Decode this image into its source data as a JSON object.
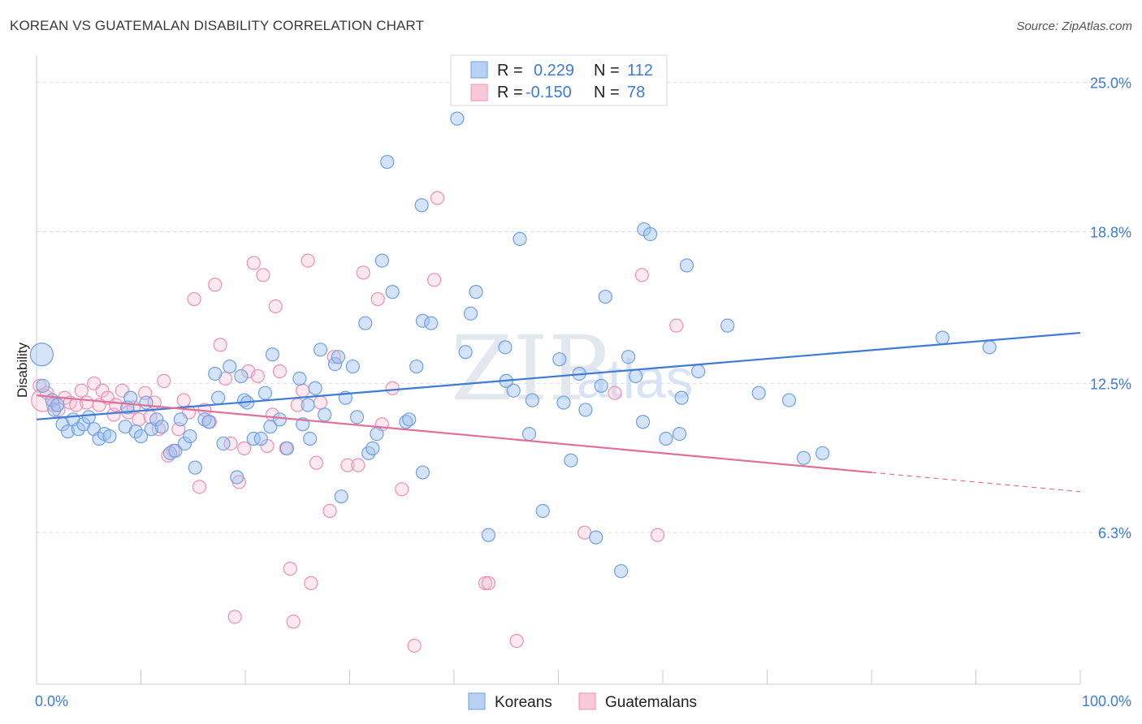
{
  "header": {
    "title": "KOREAN VS GUATEMALAN DISABILITY CORRELATION CHART",
    "source": "Source: ZipAtlas.com"
  },
  "legend": {
    "rows": [
      {
        "r_label": "R =",
        "r_value": "0.229",
        "n_label": "N =",
        "n_value": "112",
        "color": "#6fa0e4"
      },
      {
        "r_label": "R =",
        "r_value": "-0.150",
        "n_label": "N =",
        "n_value": "78",
        "color": "#ee8fb1"
      }
    ]
  },
  "watermark": {
    "zip": "ZIP",
    "atlas": "atlas"
  },
  "colors": {
    "koreans": "#3d7bd6",
    "guatemalans": "#e0709a",
    "grid": "#dcdcdc",
    "axis_text": "#3d7bd6"
  },
  "chart_data": {
    "type": "scatter",
    "title": "KOREAN VS GUATEMALAN DISABILITY CORRELATION CHART",
    "xlabel": "",
    "ylabel": "Disability",
    "xlim": [
      0,
      100
    ],
    "ylim": [
      0,
      26
    ],
    "x_tick_labels": [
      "0.0%",
      "100.0%"
    ],
    "y_ticks": [
      6.3,
      12.5,
      18.8,
      25.0
    ],
    "y_tick_labels": [
      "6.3%",
      "12.5%",
      "18.8%",
      "25.0%"
    ],
    "grid": true,
    "legend_position": "bottom",
    "series": [
      {
        "name": "Koreans",
        "color": "#6fa0e4",
        "r": 0.229,
        "n": 112,
        "trend": {
          "x": [
            0,
            100
          ],
          "y": [
            11.0,
            14.6
          ]
        },
        "points": [
          [
            0.5,
            13.7
          ],
          [
            0.6,
            12.4
          ],
          [
            1.5,
            11.8
          ],
          [
            1.7,
            11.4
          ],
          [
            2.0,
            11.6
          ],
          [
            2.5,
            10.8
          ],
          [
            3.0,
            10.5
          ],
          [
            3.5,
            11.0
          ],
          [
            4.0,
            10.6
          ],
          [
            4.5,
            10.8
          ],
          [
            5.0,
            11.1
          ],
          [
            5.5,
            10.6
          ],
          [
            6.0,
            10.2
          ],
          [
            6.5,
            10.4
          ],
          [
            7.0,
            10.3
          ],
          [
            8.5,
            10.7
          ],
          [
            8.7,
            11.5
          ],
          [
            9.0,
            11.9
          ],
          [
            9.5,
            10.5
          ],
          [
            10.0,
            10.3
          ],
          [
            10.5,
            11.7
          ],
          [
            11.0,
            10.6
          ],
          [
            11.5,
            11.0
          ],
          [
            12.0,
            10.7
          ],
          [
            12.8,
            9.6
          ],
          [
            13.3,
            9.7
          ],
          [
            13.8,
            11.0
          ],
          [
            14.2,
            10.0
          ],
          [
            14.7,
            10.3
          ],
          [
            15.2,
            9.0
          ],
          [
            16.1,
            11.0
          ],
          [
            16.5,
            10.9
          ],
          [
            17.1,
            12.9
          ],
          [
            17.4,
            11.9
          ],
          [
            17.9,
            10.0
          ],
          [
            18.5,
            13.2
          ],
          [
            19.2,
            8.6
          ],
          [
            19.6,
            12.8
          ],
          [
            19.9,
            11.8
          ],
          [
            20.2,
            11.7
          ],
          [
            20.8,
            10.2
          ],
          [
            21.5,
            10.2
          ],
          [
            21.9,
            12.1
          ],
          [
            22.4,
            10.7
          ],
          [
            22.6,
            13.7
          ],
          [
            23.3,
            11.0
          ],
          [
            24.0,
            9.8
          ],
          [
            25.2,
            12.7
          ],
          [
            25.5,
            10.8
          ],
          [
            26.0,
            11.6
          ],
          [
            26.2,
            10.2
          ],
          [
            26.7,
            12.3
          ],
          [
            27.2,
            13.9
          ],
          [
            27.6,
            11.2
          ],
          [
            28.6,
            13.3
          ],
          [
            28.9,
            13.6
          ],
          [
            29.2,
            7.8
          ],
          [
            29.6,
            11.9
          ],
          [
            30.3,
            13.2
          ],
          [
            30.7,
            11.1
          ],
          [
            31.5,
            15.0
          ],
          [
            31.8,
            9.6
          ],
          [
            32.2,
            9.8
          ],
          [
            32.6,
            10.4
          ],
          [
            33.1,
            17.6
          ],
          [
            33.6,
            21.7
          ],
          [
            34.1,
            16.3
          ],
          [
            35.4,
            10.9
          ],
          [
            35.7,
            11.0
          ],
          [
            36.4,
            13.2
          ],
          [
            36.9,
            19.9
          ],
          [
            37.0,
            15.1
          ],
          [
            37.0,
            8.8
          ],
          [
            37.8,
            15.0
          ],
          [
            40.3,
            23.5
          ],
          [
            41.1,
            13.8
          ],
          [
            41.6,
            15.4
          ],
          [
            42.1,
            16.3
          ],
          [
            43.3,
            6.2
          ],
          [
            45.0,
            12.6
          ],
          [
            45.7,
            12.2
          ],
          [
            46.3,
            18.5
          ],
          [
            47.2,
            10.4
          ],
          [
            47.5,
            11.8
          ],
          [
            48.5,
            7.2
          ],
          [
            50.1,
            13.5
          ],
          [
            50.5,
            11.7
          ],
          [
            51.2,
            9.3
          ],
          [
            52.0,
            12.9
          ],
          [
            52.6,
            11.4
          ],
          [
            53.6,
            6.1
          ],
          [
            54.1,
            12.4
          ],
          [
            54.5,
            16.1
          ],
          [
            56.7,
            13.6
          ],
          [
            57.4,
            12.8
          ],
          [
            58.1,
            10.9
          ],
          [
            58.2,
            18.9
          ],
          [
            58.8,
            18.7
          ],
          [
            60.3,
            10.2
          ],
          [
            61.6,
            10.4
          ],
          [
            61.8,
            11.9
          ],
          [
            62.3,
            17.4
          ],
          [
            66.2,
            14.9
          ],
          [
            72.1,
            11.8
          ],
          [
            73.5,
            9.4
          ],
          [
            75.3,
            9.6
          ],
          [
            86.8,
            14.4
          ],
          [
            91.3,
            14.0
          ],
          [
            44.9,
            14.0
          ],
          [
            63.4,
            13.0
          ],
          [
            69.2,
            12.1
          ],
          [
            56.0,
            4.7
          ]
        ]
      },
      {
        "name": "Guatemalans",
        "color": "#ee8fb1",
        "r": -0.15,
        "n": 78,
        "trend": {
          "x": [
            0,
            80
          ],
          "y": [
            12.0,
            8.8
          ],
          "x_dashed_end": 100,
          "y_dashed_end": 8.0
        },
        "points": [
          [
            0.3,
            12.4
          ],
          [
            0.6,
            11.8
          ],
          [
            1.0,
            12.1
          ],
          [
            1.6,
            11.6
          ],
          [
            2.1,
            11.4
          ],
          [
            2.7,
            11.9
          ],
          [
            3.2,
            11.7
          ],
          [
            3.8,
            11.6
          ],
          [
            4.3,
            12.2
          ],
          [
            4.8,
            11.7
          ],
          [
            5.5,
            12.5
          ],
          [
            6.0,
            11.6
          ],
          [
            6.3,
            12.2
          ],
          [
            6.8,
            11.9
          ],
          [
            7.4,
            11.2
          ],
          [
            7.6,
            11.6
          ],
          [
            8.2,
            12.2
          ],
          [
            8.8,
            11.3
          ],
          [
            9.3,
            11.5
          ],
          [
            9.8,
            11.0
          ],
          [
            10.4,
            12.1
          ],
          [
            10.9,
            11.1
          ],
          [
            11.3,
            11.7
          ],
          [
            11.7,
            10.6
          ],
          [
            12.2,
            12.6
          ],
          [
            12.6,
            9.5
          ],
          [
            13.1,
            9.7
          ],
          [
            13.6,
            10.6
          ],
          [
            14.1,
            11.8
          ],
          [
            14.6,
            11.3
          ],
          [
            15.1,
            16.0
          ],
          [
            15.6,
            8.2
          ],
          [
            16.1,
            11.4
          ],
          [
            16.6,
            10.9
          ],
          [
            17.1,
            16.6
          ],
          [
            17.6,
            14.1
          ],
          [
            18.1,
            12.7
          ],
          [
            18.6,
            10.0
          ],
          [
            19.0,
            2.8
          ],
          [
            19.4,
            8.4
          ],
          [
            19.9,
            9.8
          ],
          [
            20.3,
            13.0
          ],
          [
            20.8,
            17.5
          ],
          [
            21.2,
            12.8
          ],
          [
            21.7,
            17.0
          ],
          [
            22.1,
            9.9
          ],
          [
            22.6,
            11.2
          ],
          [
            22.9,
            15.7
          ],
          [
            23.3,
            13.0
          ],
          [
            23.9,
            9.8
          ],
          [
            24.3,
            4.8
          ],
          [
            24.6,
            2.6
          ],
          [
            25.0,
            11.6
          ],
          [
            25.5,
            12.2
          ],
          [
            26.0,
            17.6
          ],
          [
            26.3,
            4.2
          ],
          [
            26.8,
            9.2
          ],
          [
            27.2,
            11.7
          ],
          [
            28.1,
            7.2
          ],
          [
            28.5,
            13.6
          ],
          [
            29.8,
            9.1
          ],
          [
            30.8,
            9.1
          ],
          [
            31.3,
            17.1
          ],
          [
            32.7,
            16.0
          ],
          [
            33.1,
            10.8
          ],
          [
            34.1,
            12.3
          ],
          [
            35.0,
            8.1
          ],
          [
            36.2,
            1.6
          ],
          [
            38.1,
            16.8
          ],
          [
            38.4,
            20.2
          ],
          [
            43.0,
            4.2
          ],
          [
            43.3,
            4.2
          ],
          [
            46.0,
            1.8
          ],
          [
            52.5,
            6.3
          ],
          [
            55.4,
            12.1
          ],
          [
            58.0,
            17.0
          ],
          [
            59.5,
            6.2
          ],
          [
            61.3,
            14.9
          ]
        ]
      }
    ]
  }
}
